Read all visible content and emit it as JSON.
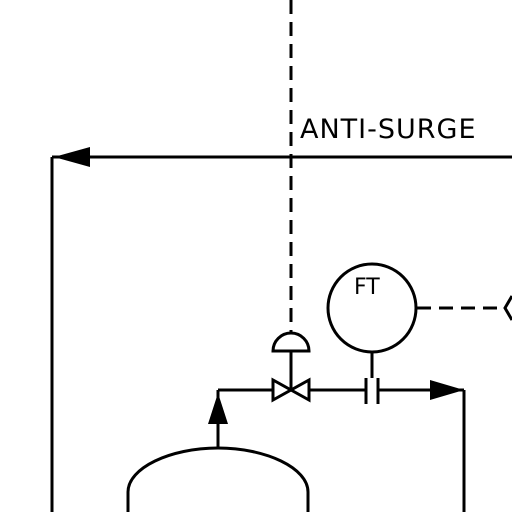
{
  "diagram": {
    "line_label": "ANTI-SURGE",
    "instrument_tag": "FT",
    "line_color": "#000000",
    "background_color": "#ffffff",
    "signal_line_style": "dashed",
    "symbols": [
      "dashed-signal-line-vertical",
      "anti-surge-process-line",
      "arrow-head-left",
      "control-valve",
      "diaphragm-actuator",
      "flow-transmitter-bubble",
      "orifice-plate",
      "arrow-head-right",
      "arrow-head-up",
      "vessel-top"
    ]
  }
}
